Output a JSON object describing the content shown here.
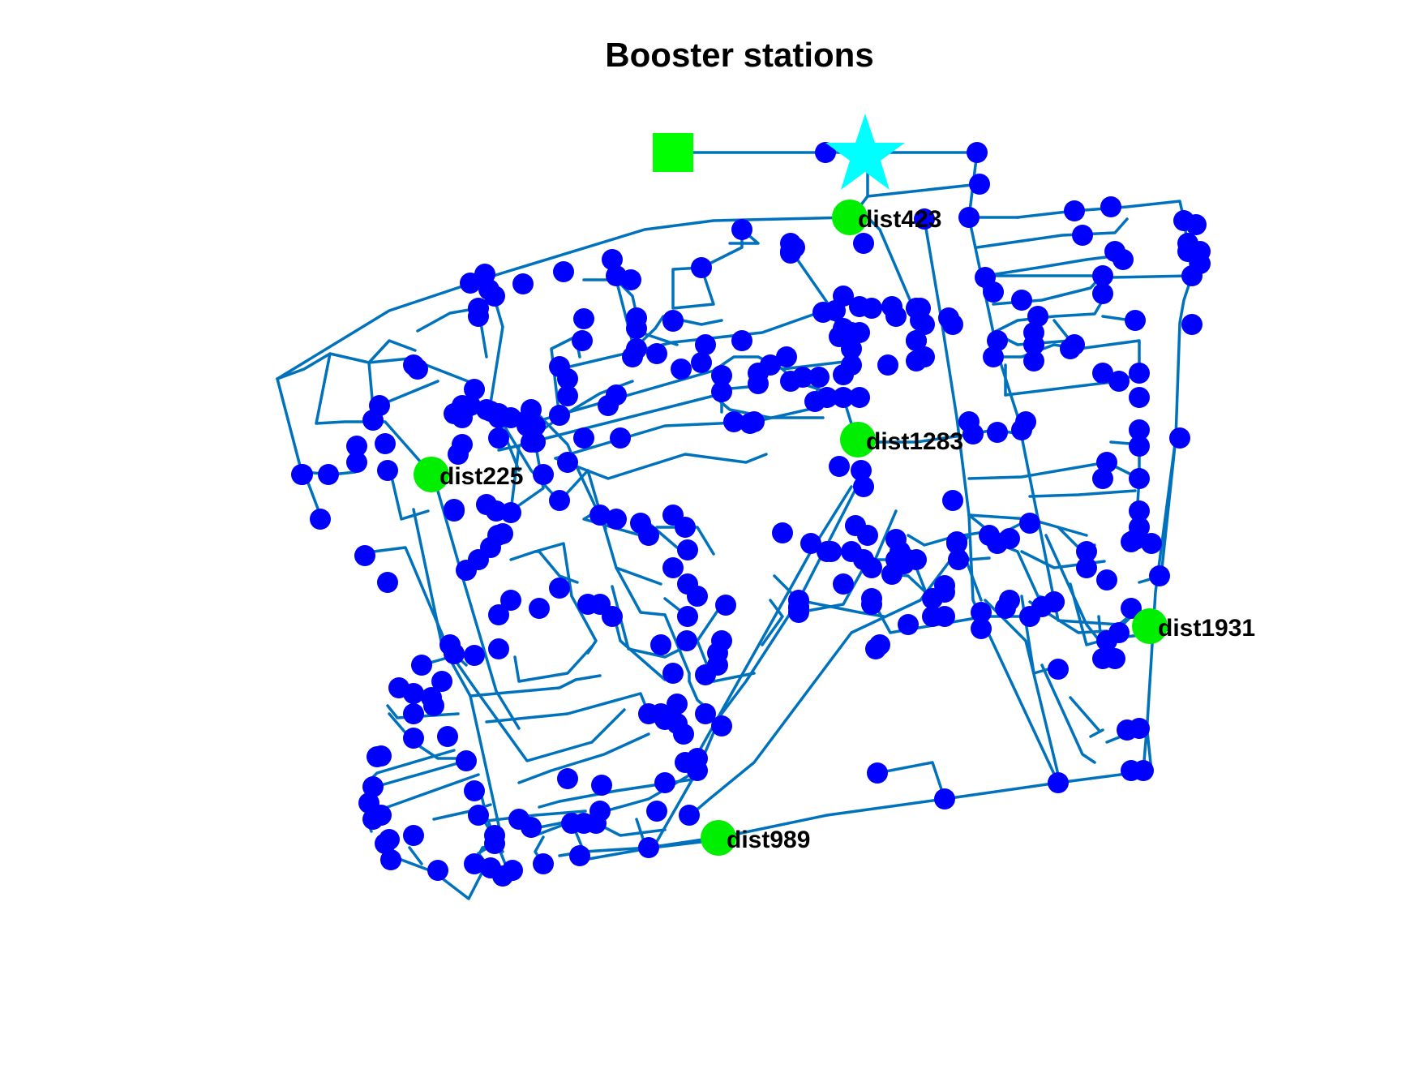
{
  "title": "Booster stations",
  "colors": {
    "pipe": "#0072bd",
    "junction": "#0000ff",
    "booster": "#00ee00",
    "reservoir": "#00ff00",
    "tank": "#00ffff",
    "label": "#000000",
    "background": "#ffffff"
  },
  "legend_symbols": {
    "reservoir": "green square",
    "tank": "cyan star",
    "junction": "blue circle",
    "booster": "green circle"
  },
  "boosters": [
    {
      "label": "dist423"
    },
    {
      "label": "dist1283"
    },
    {
      "label": "dist225"
    },
    {
      "label": "dist1931"
    },
    {
      "label": "dist989"
    }
  ]
}
